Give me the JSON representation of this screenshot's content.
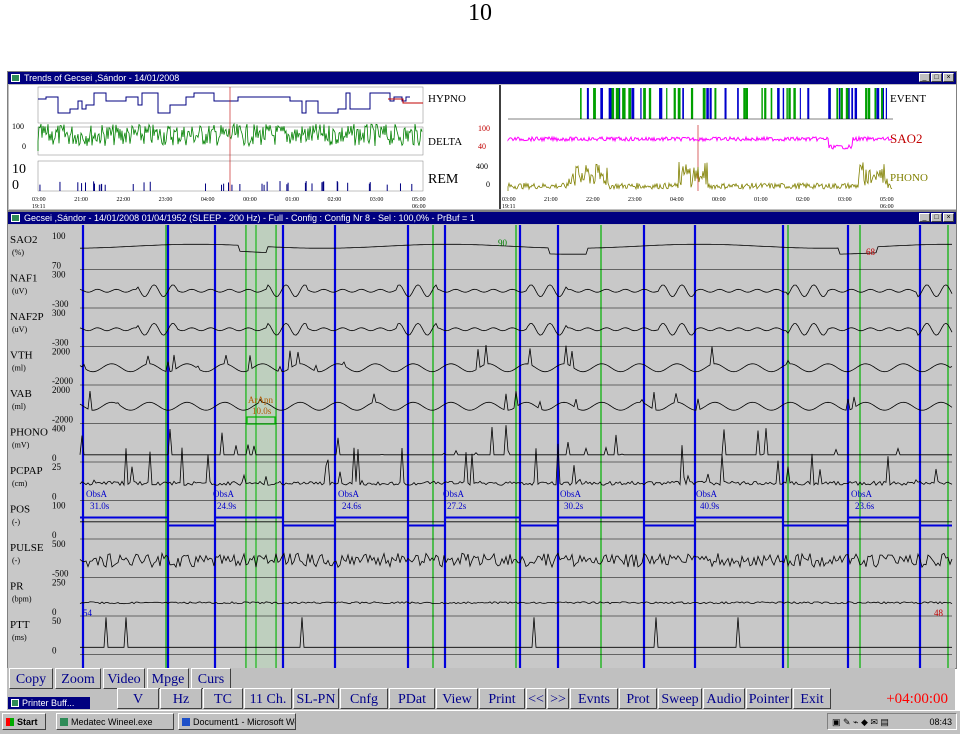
{
  "page_number": "10",
  "trends_window": {
    "title": "Trends of Gecsei ,Sándor - 14/01/2008",
    "left_labels": [
      "HYPNO",
      "DELTA",
      "REM"
    ],
    "right_labels": [
      "EVENT",
      "SAO2",
      "PHONO"
    ],
    "delta_scale": [
      "100",
      "0"
    ],
    "rem_scale": [
      "10",
      "0"
    ],
    "sao2_scale": [
      "100",
      "40"
    ],
    "phono_scale": [
      "400",
      "0"
    ],
    "left_time_axis": [
      "03:00",
      "21:00",
      "22:00",
      "23:00",
      "04:00",
      "00:00",
      "01:00",
      "02:00",
      "03:00",
      "05:00"
    ],
    "left_time_axis_sub": [
      "19:11",
      "06:00"
    ],
    "right_time_axis": [
      "03:00",
      "21:00",
      "22:00",
      "23:00",
      "04:00",
      "00:00",
      "01:00",
      "02:00",
      "03:00",
      "05:00"
    ],
    "right_time_axis_sub": [
      "19:11",
      "06:00"
    ]
  },
  "main_window": {
    "title": "Gecsei ,Sándor - 14/01/2008  01/04/1952 (SLEEP - 200 Hz) - Full - Config : Config Nr 8 - Sel : 100,0% - PrBuf = 1",
    "channels": [
      {
        "name": "SAO2",
        "unit": "(%)",
        "scale_top": "100",
        "scale_bottom": "70"
      },
      {
        "name": "NAF1",
        "unit": "(uV)",
        "scale_top": "300",
        "scale_bottom": "-300"
      },
      {
        "name": "NAF2P",
        "unit": "(uV)",
        "scale_top": "300",
        "scale_bottom": "-300"
      },
      {
        "name": "VTH",
        "unit": "(ml)",
        "scale_top": "2000",
        "scale_bottom": "-2000"
      },
      {
        "name": "VAB",
        "unit": "(ml)",
        "scale_top": "2000",
        "scale_bottom": "-2000"
      },
      {
        "name": "PHONO",
        "unit": "(mV)",
        "scale_top": "400",
        "scale_bottom": "0"
      },
      {
        "name": "PCPAP",
        "unit": "(cm)",
        "scale_top": "25",
        "scale_bottom": "0"
      },
      {
        "name": "POS",
        "unit": "(-)",
        "scale_top": "100",
        "scale_bottom": "0"
      },
      {
        "name": "PULSE",
        "unit": "(-)",
        "scale_top": "500",
        "scale_bottom": "-500"
      },
      {
        "name": "PR",
        "unit": "(bpm)",
        "scale_top": "250",
        "scale_bottom": "0"
      },
      {
        "name": "PTT",
        "unit": "(ms)",
        "scale_top": "50",
        "scale_bottom": "0"
      }
    ],
    "sao2_marks": [
      "90",
      "68"
    ],
    "pr_marks": [
      "54",
      "48"
    ],
    "arousal_event": {
      "label": "ArApn",
      "duration": "10.0s"
    },
    "obs_events": [
      {
        "label": "ObsA",
        "duration": "31.0s"
      },
      {
        "label": "ObsA",
        "duration": "24.9s"
      },
      {
        "label": "ObsA",
        "duration": "24.6s"
      },
      {
        "label": "ObsA",
        "duration": "27.2s"
      },
      {
        "label": "ObsA",
        "duration": "30.2s"
      },
      {
        "label": "ObsA",
        "duration": "40.9s"
      },
      {
        "label": "ObsA",
        "duration": "23.6s"
      }
    ]
  },
  "toolbar": {
    "row1": [
      "Copy",
      "Zoom",
      "Video",
      "Mpge",
      "Curs"
    ],
    "row2": [
      "V",
      "Hz",
      "TC",
      "11 Ch.",
      "SL-PN",
      "Cnfg",
      "PDat",
      "View",
      "Print",
      "<<",
      ">>",
      "Evnts",
      "Prot",
      "Sweep",
      "Audio",
      "Pointer",
      "Exit"
    ],
    "time_offset": "+04:00:00"
  },
  "popup": {
    "title": "Printer Buff..."
  },
  "taskbar": {
    "start_label": "Start",
    "tasks": [
      "Medatec Wineel.exe",
      "Document1 - Microsoft Word"
    ],
    "clock": "08:43"
  },
  "colors": {
    "titlebar": "#000080",
    "panel": "#c0c0c0",
    "hypno": "#000080",
    "delta": "#008000",
    "sao2_trend": "#ff00ff",
    "phono_trend": "#808000",
    "event_blue": "#0000cc",
    "event_green": "#00a000",
    "offset_text": "#ff0000",
    "button_text": "#00008b"
  }
}
